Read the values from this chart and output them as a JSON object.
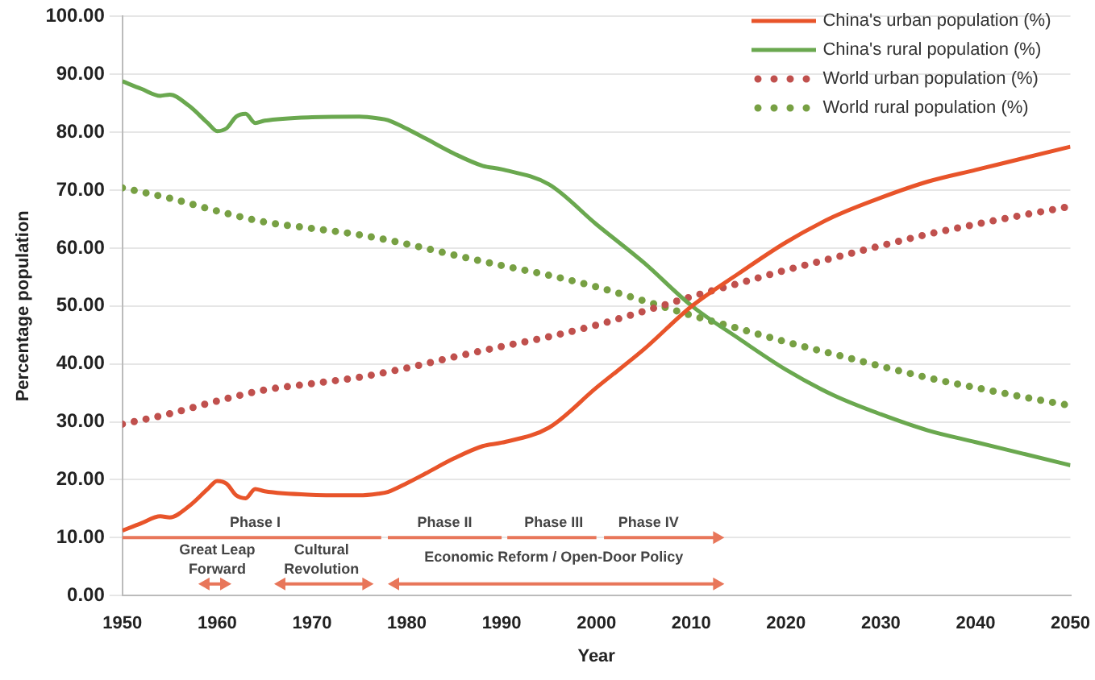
{
  "chart_data": {
    "type": "line",
    "xlabel": "Year",
    "ylabel": "Percentage population",
    "xlim": [
      1950,
      2050
    ],
    "xticks": [
      1950,
      1960,
      1970,
      1980,
      1990,
      2000,
      2010,
      2020,
      2030,
      2040,
      2050
    ],
    "ylim": [
      0,
      100
    ],
    "yticks": [
      {
        "value": 0,
        "label": "0.00"
      },
      {
        "value": 10,
        "label": "10.00"
      },
      {
        "value": 20,
        "label": "20.00"
      },
      {
        "value": 30,
        "label": "30.00"
      },
      {
        "value": 40,
        "label": "40.00"
      },
      {
        "value": 50,
        "label": "50.00"
      },
      {
        "value": 60,
        "label": "60.00"
      },
      {
        "value": 70,
        "label": "70.00"
      },
      {
        "value": 80,
        "label": "80.00"
      },
      {
        "value": 90,
        "label": "90.00"
      },
      {
        "value": 100,
        "label": "100.00"
      }
    ],
    "grid": "y",
    "legend": "top right",
    "marker": "none",
    "series": [
      {
        "name": "China's urban population (%)",
        "color": "#e8542a",
        "line_style": "solid",
        "x": [
          1950,
          1952,
          1954,
          1955,
          1957,
          1959,
          1960,
          1961,
          1962,
          1963,
          1964,
          1965,
          1970,
          1975,
          1977,
          1978,
          1980,
          1982,
          1985,
          1988,
          1990,
          1995,
          2000,
          2005,
          2010,
          2015,
          2020,
          2025,
          2030,
          2035,
          2040,
          2045,
          2050
        ],
        "values": [
          11.2,
          12.5,
          13.7,
          13.5,
          15.4,
          18.4,
          19.8,
          19.3,
          17.3,
          16.8,
          18.4,
          18.0,
          17.4,
          17.3,
          17.6,
          17.9,
          19.4,
          21.1,
          23.7,
          25.8,
          26.4,
          29.0,
          35.9,
          42.5,
          49.9,
          55.6,
          61.0,
          65.4,
          68.7,
          71.5,
          73.5,
          75.5,
          77.5
        ]
      },
      {
        "name": "China's rural population (%)",
        "color": "#6aa84f",
        "line_style": "solid",
        "x": [
          1950,
          1952,
          1954,
          1955,
          1957,
          1959,
          1960,
          1961,
          1962,
          1963,
          1964,
          1965,
          1970,
          1975,
          1977,
          1978,
          1980,
          1982,
          1985,
          1988,
          1990,
          1995,
          2000,
          2005,
          2010,
          2015,
          2020,
          2025,
          2030,
          2035,
          2040,
          2045,
          2050
        ],
        "values": [
          88.8,
          87.5,
          86.3,
          86.5,
          84.6,
          81.6,
          80.2,
          80.7,
          82.7,
          83.2,
          81.6,
          82.0,
          82.6,
          82.7,
          82.4,
          82.1,
          80.6,
          78.9,
          76.3,
          74.2,
          73.6,
          71.0,
          64.1,
          57.5,
          50.1,
          44.4,
          39.0,
          34.6,
          31.3,
          28.5,
          26.5,
          24.5,
          22.5
        ]
      },
      {
        "name": "World urban population (%)",
        "color": "#c0504d",
        "line_style": "dotted",
        "x": [
          1950,
          1955,
          1960,
          1965,
          1970,
          1975,
          1980,
          1985,
          1990,
          1995,
          2000,
          2005,
          2010,
          2015,
          2020,
          2025,
          2030,
          2035,
          2040,
          2045,
          2050
        ],
        "values": [
          29.6,
          31.4,
          33.6,
          35.5,
          36.6,
          37.7,
          39.3,
          41.2,
          43.0,
          44.7,
          46.7,
          49.1,
          51.6,
          53.9,
          56.2,
          58.3,
          60.4,
          62.4,
          64.1,
          65.7,
          67.2
        ]
      },
      {
        "name": "World rural population (%)",
        "color": "#77a043",
        "line_style": "dotted",
        "x": [
          1950,
          1955,
          1960,
          1965,
          1970,
          1975,
          1980,
          1985,
          1990,
          1995,
          2000,
          2005,
          2010,
          2015,
          2020,
          2025,
          2030,
          2035,
          2040,
          2045,
          2050
        ],
        "values": [
          70.4,
          68.6,
          66.4,
          64.5,
          63.4,
          62.3,
          60.7,
          58.8,
          57.0,
          55.3,
          53.3,
          50.9,
          48.4,
          46.1,
          43.8,
          41.7,
          39.6,
          37.6,
          35.9,
          34.3,
          32.8
        ]
      }
    ],
    "annotations": [
      "Phase I",
      "Phase II",
      "Phase III",
      "Phase IV",
      "Great Leap Forward",
      "Cultural Revolution",
      "Economic Reform / Open-Door Policy"
    ]
  }
}
